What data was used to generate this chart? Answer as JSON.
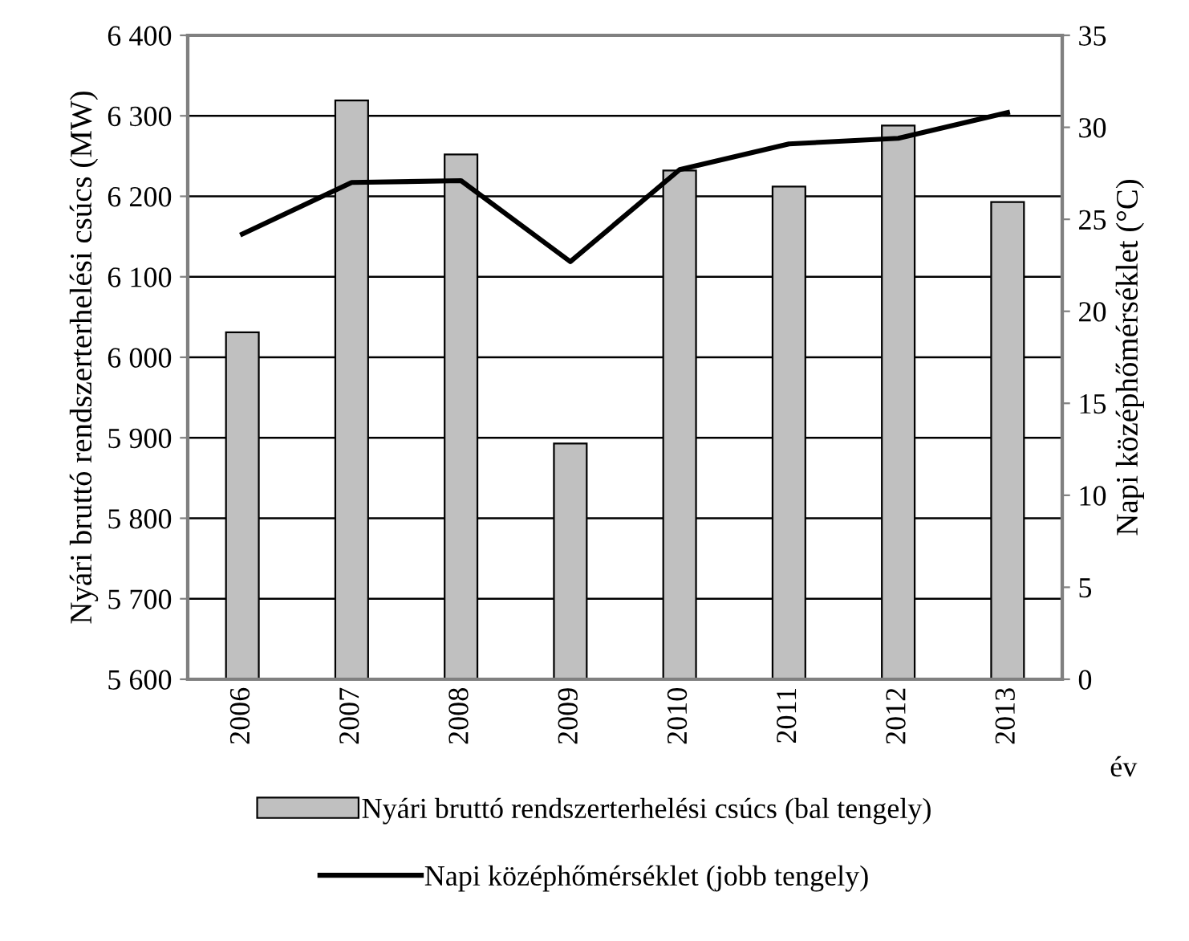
{
  "chart_data": {
    "type": "bar",
    "xlabel": "év",
    "ylabel": "Nyári bruttó rendszerterhelési csúcs (MW)",
    "y2label": "Napi középhőmérséklet (°C)",
    "categories": [
      "2006",
      "2007",
      "2008",
      "2009",
      "2010",
      "2011",
      "2012",
      "2013"
    ],
    "series": [
      {
        "name": "Nyári bruttó rendszerterhelési csúcs (bal tengely)",
        "color": "#c0c0c0",
        "values": [
          6031,
          6319,
          6252,
          5893,
          6232,
          6212,
          6288,
          6193
        ]
      },
      {
        "name": "Napi középhőmérséklet (jobb tengely)",
        "type": "line",
        "axis": "y2",
        "color": "#000000",
        "values": [
          24.2,
          27.0,
          27.1,
          22.7,
          27.7,
          29.1,
          29.4,
          30.8
        ]
      }
    ],
    "ylim": [
      5600,
      6400
    ],
    "yticks": [
      {
        "value": 5600,
        "label": "5 600"
      },
      {
        "value": 5700,
        "label": "5 700"
      },
      {
        "value": 5800,
        "label": "5 800"
      },
      {
        "value": 5900,
        "label": "5 900"
      },
      {
        "value": 6000,
        "label": "6 000"
      },
      {
        "value": 6100,
        "label": "6 100"
      },
      {
        "value": 6200,
        "label": "6 200"
      },
      {
        "value": 6300,
        "label": "6 300"
      },
      {
        "value": 6400,
        "label": "6 400"
      }
    ],
    "y2lim": [
      0,
      35
    ],
    "y2ticks": [
      0,
      5,
      10,
      15,
      20,
      25,
      30,
      35
    ],
    "grid": "y",
    "legend": "bottom",
    "marker": "none",
    "line_style": "solid"
  }
}
